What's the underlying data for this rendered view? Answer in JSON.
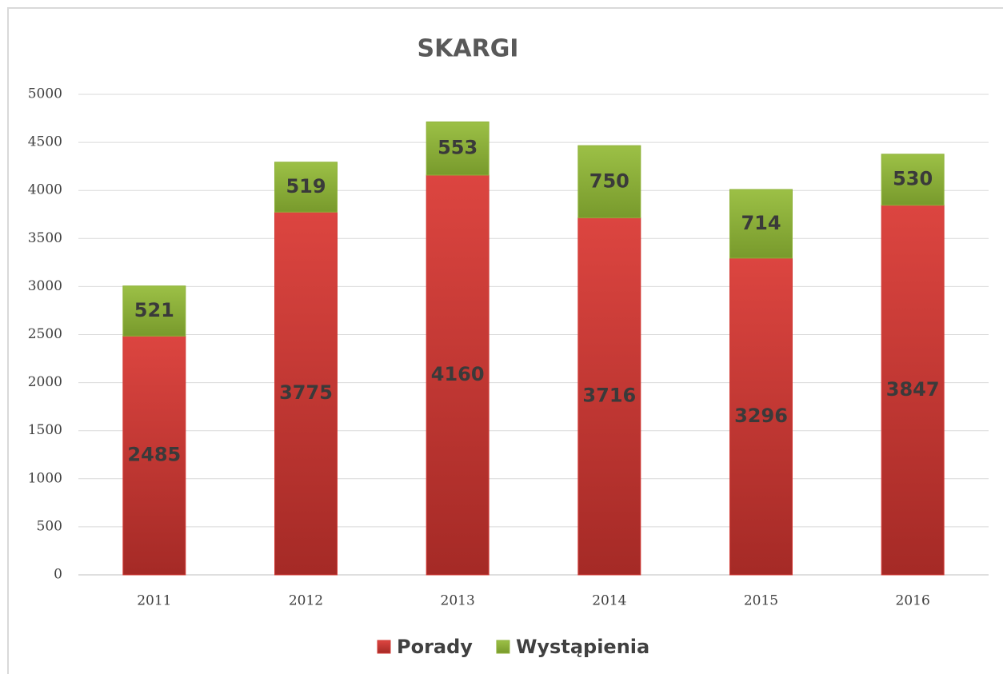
{
  "chart_data": {
    "type": "bar",
    "stacked": true,
    "title": "SKARGI",
    "categories": [
      "2011",
      "2012",
      "2013",
      "2014",
      "2015",
      "2016"
    ],
    "series": [
      {
        "name": "Porady",
        "color": "#d23b36",
        "values": [
          2485,
          3775,
          4160,
          3716,
          3296,
          3847
        ]
      },
      {
        "name": "Wystąpienia",
        "color": "#8fb23a",
        "values": [
          521,
          519,
          553,
          750,
          714,
          530
        ]
      }
    ],
    "ylim": [
      0,
      5000
    ],
    "yticks": [
      0,
      500,
      1000,
      1500,
      2000,
      2500,
      3000,
      3500,
      4000,
      4500,
      5000
    ],
    "grid": true,
    "legend": "bottom"
  }
}
